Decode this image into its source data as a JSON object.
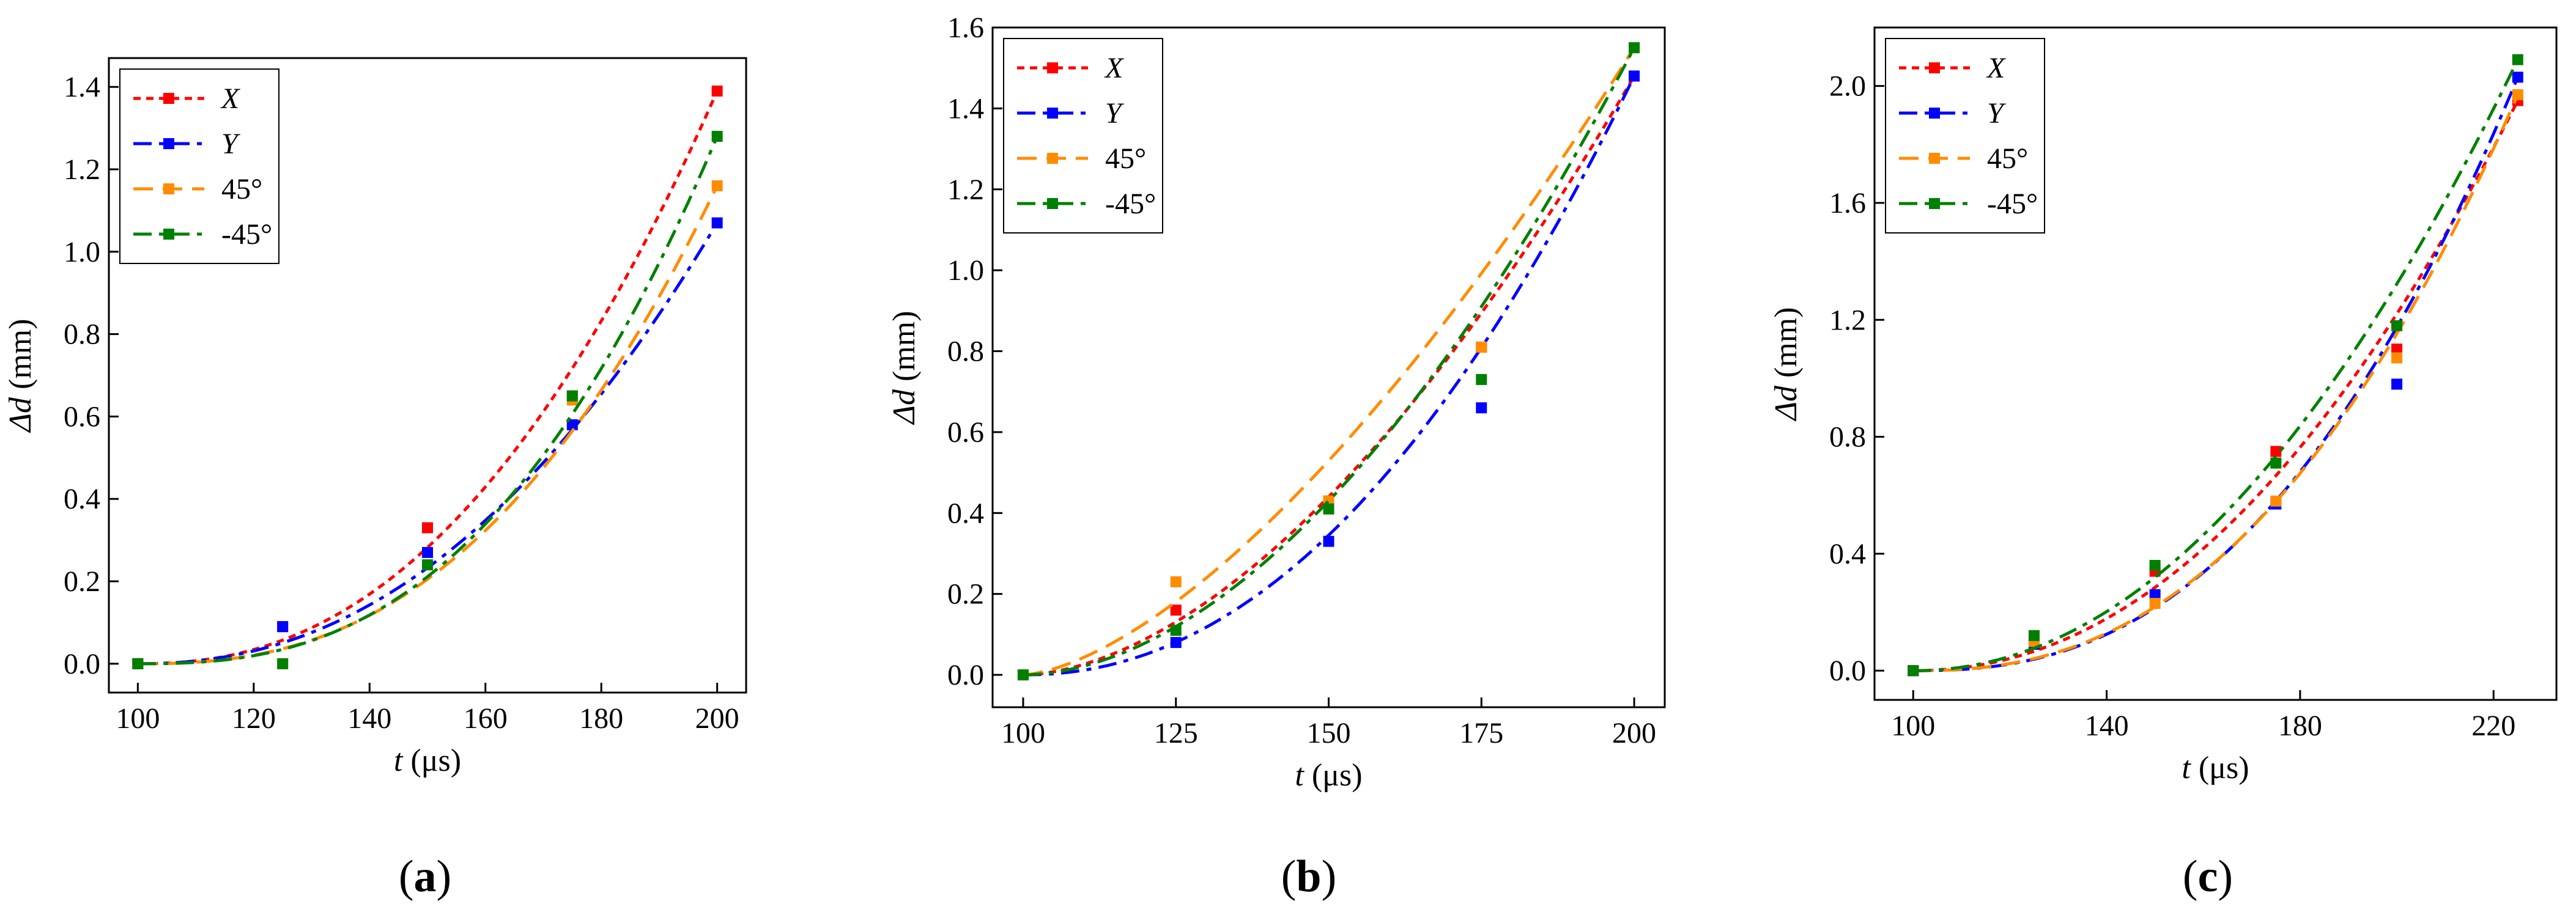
{
  "figure": {
    "panels": [
      {
        "label_open": "(",
        "letter": "a",
        "label_close": ")"
      },
      {
        "label_open": "(",
        "letter": "b",
        "label_close": ")"
      },
      {
        "label_open": "(",
        "letter": "c",
        "label_close": ")"
      }
    ]
  },
  "chart_data": [
    {
      "type": "line",
      "panel": "a",
      "xlabel_var": "t",
      "xlabel_unit": " (μs)",
      "ylabel_var": "Δd",
      "ylabel_unit": " (mm)",
      "xlim": [
        95,
        205
      ],
      "ylim": [
        -0.07,
        1.47
      ],
      "xticks": [
        100,
        120,
        140,
        160,
        180,
        200
      ],
      "yticks": [
        0.0,
        0.2,
        0.4,
        0.6,
        0.8,
        1.0,
        1.2,
        1.4
      ],
      "ytick_decimals": 1,
      "legend_position": "top-left",
      "x": [
        100,
        125,
        150,
        175,
        200
      ],
      "series": [
        {
          "name": "X",
          "italic": true,
          "color": "#ff0000",
          "dash": "dot",
          "values": [
            0.0,
            0.09,
            0.33,
            0.65,
            1.39
          ],
          "fit_exp": 2.3
        },
        {
          "name": "Y",
          "italic": true,
          "color": "#0000ff",
          "dash": "dashdot",
          "values": [
            0.0,
            0.09,
            0.27,
            0.58,
            1.07
          ],
          "fit_exp": 2.2
        },
        {
          "name": "45°",
          "italic": false,
          "color": "#ff8c00",
          "dash": "dash",
          "values": [
            0.0,
            0.0,
            0.24,
            0.64,
            1.16
          ],
          "fit_exp": 2.5
        },
        {
          "name": "-45°",
          "italic": false,
          "color": "#008000",
          "dash": "dashdot",
          "values": [
            0.0,
            0.0,
            0.24,
            0.65,
            1.28
          ],
          "fit_exp": 2.6
        }
      ]
    },
    {
      "type": "line",
      "panel": "b",
      "xlabel_var": "t",
      "xlabel_unit": " (μs)",
      "ylabel_var": "Δd",
      "ylabel_unit": " (mm)",
      "xlim": [
        95,
        205
      ],
      "ylim": [
        -0.08,
        1.6
      ],
      "xticks": [
        100,
        125,
        150,
        175,
        200
      ],
      "yticks": [
        0.0,
        0.2,
        0.4,
        0.6,
        0.8,
        1.0,
        1.2,
        1.4,
        1.6
      ],
      "ytick_decimals": 1,
      "legend_position": "top-left",
      "x": [
        100,
        125,
        150,
        175,
        200
      ],
      "series": [
        {
          "name": "X",
          "italic": true,
          "color": "#ff0000",
          "dash": "dot",
          "values": [
            0.0,
            0.16,
            0.42,
            0.81,
            1.48
          ],
          "fit_exp": 1.75
        },
        {
          "name": "Y",
          "italic": true,
          "color": "#0000ff",
          "dash": "dashdot",
          "values": [
            0.0,
            0.08,
            0.33,
            0.66,
            1.48
          ],
          "fit_exp": 2.1
        },
        {
          "name": "45°",
          "italic": false,
          "color": "#ff8c00",
          "dash": "dash",
          "values": [
            0.0,
            0.23,
            0.43,
            0.81,
            1.55
          ],
          "fit_exp": 1.55
        },
        {
          "name": "-45°",
          "italic": false,
          "color": "#008000",
          "dash": "dashdot",
          "values": [
            0.0,
            0.11,
            0.41,
            0.73,
            1.55
          ],
          "fit_exp": 1.85
        }
      ]
    },
    {
      "type": "line",
      "panel": "c",
      "xlabel_var": "t",
      "xlabel_unit": " (μs)",
      "ylabel_var": "Δd",
      "ylabel_unit": " (mm)",
      "xlim": [
        92,
        233
      ],
      "ylim": [
        -0.1,
        2.2
      ],
      "xticks": [
        100,
        140,
        180,
        220
      ],
      "yticks": [
        0.0,
        0.4,
        0.8,
        1.2,
        1.6,
        2.0
      ],
      "ytick_decimals": 1,
      "legend_position": "top-left",
      "x": [
        100,
        125,
        150,
        175,
        200,
        225
      ],
      "series": [
        {
          "name": "X",
          "italic": true,
          "color": "#ff0000",
          "dash": "dot",
          "values": [
            0.0,
            0.1,
            0.34,
            0.75,
            1.1,
            1.95
          ],
          "fit_exp": 2.1
        },
        {
          "name": "Y",
          "italic": true,
          "color": "#0000ff",
          "dash": "dashdot",
          "values": [
            0.0,
            0.09,
            0.26,
            0.57,
            0.98,
            2.03
          ],
          "fit_exp": 2.45
        },
        {
          "name": "45°",
          "italic": false,
          "color": "#ff8c00",
          "dash": "dash",
          "values": [
            0.0,
            0.1,
            0.23,
            0.58,
            1.07,
            1.97
          ],
          "fit_exp": 2.4
        },
        {
          "name": "-45°",
          "italic": false,
          "color": "#008000",
          "dash": "dashdot",
          "values": [
            0.0,
            0.12,
            0.36,
            0.71,
            1.18,
            2.09
          ],
          "fit_exp": 2.05
        }
      ]
    }
  ]
}
